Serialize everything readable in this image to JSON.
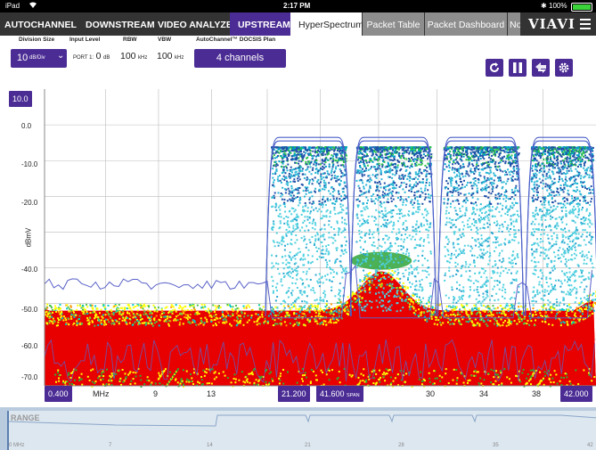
{
  "status_bar": {
    "carrier": "iPad",
    "time": "2:17 PM",
    "battery": "100%"
  },
  "nav": {
    "tabs": [
      {
        "label": "AUTOCHANNEL",
        "selected": false
      },
      {
        "label": "DOWNSTREAM",
        "selected": false
      },
      {
        "label": "VIDEO ANALYZER",
        "selected": false
      },
      {
        "label": "UPSTREAM",
        "selected": true
      },
      {
        "label": "HyperSpectrum™",
        "selected": true
      },
      {
        "label": "Packet Table",
        "selected": false
      },
      {
        "label": "Packet Dashboard",
        "selected": false
      },
      {
        "label": "No",
        "selected": false
      }
    ],
    "logo": "VIAVI"
  },
  "controls": {
    "division_size": {
      "label": "Division Size",
      "value": "10",
      "unit": "dB/Div"
    },
    "input_level": {
      "label": "Input Level",
      "port": "PORT 1:",
      "value": "0",
      "unit": "dB"
    },
    "rbw": {
      "label": "RBW",
      "value": "100",
      "unit": "kHz"
    },
    "vbw": {
      "label": "VBW",
      "value": "100",
      "unit": "kHz"
    },
    "plan": {
      "label": "AutoChannel™ DOCSIS Plan",
      "value": "4 channels"
    }
  },
  "toolbar_icons": [
    "refresh-icon",
    "pause-icon",
    "swap-icon",
    "settings-gear-icon"
  ],
  "colors": {
    "accent": "#4b2c94",
    "trace": "#4a5fc8",
    "density_high": "#ff0000",
    "density_mid": "#ffff00",
    "density_low": "#00ced1"
  },
  "chart_data": {
    "type": "heatmap",
    "ylabel": "dBmV",
    "reference_level": "10.0",
    "y_ticks": [
      "0.0",
      "-10.0",
      "-20.0",
      "",
      "-40.0",
      "-50.0",
      "-60.0",
      "-70.0"
    ],
    "x_ticks": [
      "MHz",
      "9",
      "13",
      "30",
      "34",
      "38"
    ],
    "x_start": "0.400",
    "x_end": "42.000",
    "center": "21.200",
    "span": "41.600",
    "span_label": "SPAN",
    "xlim": [
      0.4,
      42.0
    ],
    "ylim": [
      -73,
      10
    ],
    "channels": [
      {
        "start": 17.2,
        "end": 23.4,
        "top_dbmv": -3.5,
        "floor_dbmv": -52
      },
      {
        "start": 23.6,
        "end": 29.8,
        "top_dbmv": -3.5,
        "floor_dbmv": -52
      },
      {
        "start": 30.2,
        "end": 36.4,
        "top_dbmv": -3.5,
        "floor_dbmv": -52
      },
      {
        "start": 36.8,
        "end": 42.0,
        "top_dbmv": -3.5,
        "floor_dbmv": -52
      }
    ],
    "noise_floor_dbmv": -57,
    "ingress_peak": {
      "center_mhz": 25.8,
      "level_dbmv": -41
    },
    "grid": true
  },
  "range_bar": {
    "title": "RANGE",
    "ticks": [
      "0 MHz",
      "7",
      "14",
      "21",
      "28",
      "35",
      "42"
    ]
  }
}
